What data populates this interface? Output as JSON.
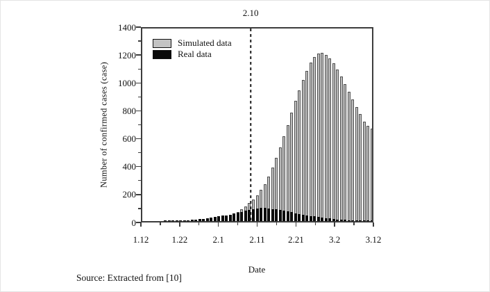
{
  "figure": {
    "dashed_line_label": "2.10",
    "y_axis_title": "Number of confirmed cases (case)",
    "x_axis_title": "Date",
    "source_text": "Source: Extracted from [10]"
  },
  "chart_data": {
    "type": "bar",
    "title": "",
    "xlabel": "Date",
    "ylabel": "Number of confirmed cases (case)",
    "ylim": [
      0,
      1400
    ],
    "grid": false,
    "legend_position": "top-left",
    "y_major_ticks": [
      0,
      200,
      400,
      600,
      800,
      1000,
      1200,
      1400
    ],
    "y_minor_ticks": [
      100,
      300,
      500,
      700,
      900,
      1100,
      1300
    ],
    "x_major_tick_labels": [
      "1.12",
      "1.22",
      "2.1",
      "2.11",
      "2.21",
      "3.2",
      "3.12"
    ],
    "x_major_tick_day_index": [
      0,
      10,
      20,
      30,
      40,
      50,
      60
    ],
    "x_minor_tick_day_index": [
      5,
      15,
      25,
      35,
      45,
      55
    ],
    "annotation": {
      "label": "2.10",
      "style": "dashed-vertical-line",
      "x_fraction": 0.472
    },
    "x": [
      "1.12",
      "1.13",
      "1.14",
      "1.15",
      "1.16",
      "1.17",
      "1.18",
      "1.19",
      "1.20",
      "1.21",
      "1.22",
      "1.23",
      "1.24",
      "1.25",
      "1.26",
      "1.27",
      "1.28",
      "1.29",
      "1.30",
      "1.31",
      "2.1",
      "2.2",
      "2.3",
      "2.4",
      "2.5",
      "2.6",
      "2.7",
      "2.8",
      "2.9",
      "2.10",
      "2.11",
      "2.12",
      "2.13",
      "2.14",
      "2.15",
      "2.16",
      "2.17",
      "2.18",
      "2.19",
      "2.20",
      "2.21",
      "2.22",
      "2.23",
      "2.24",
      "2.25",
      "2.26",
      "2.27",
      "2.28",
      "2.29",
      "3.1",
      "3.2",
      "3.3",
      "3.4",
      "3.5",
      "3.6",
      "3.7",
      "3.8",
      "3.9",
      "3.10",
      "3.11",
      "3.12"
    ],
    "series": [
      {
        "name": "Simulated data",
        "color": "#bdbdbd",
        "border": "#4f4f4f",
        "values": [
          0,
          0,
          0,
          0,
          0,
          0,
          0,
          0,
          0,
          0,
          0,
          0,
          0,
          0,
          0,
          0,
          0,
          0,
          0,
          0,
          0,
          0,
          15,
          30,
          45,
          65,
          85,
          105,
          130,
          155,
          185,
          225,
          270,
          325,
          390,
          460,
          535,
          615,
          700,
          790,
          875,
          950,
          1025,
          1090,
          1150,
          1195,
          1220,
          1225,
          1210,
          1185,
          1145,
          1100,
          1050,
          995,
          940,
          885,
          830,
          780,
          725,
          695,
          670
        ]
      },
      {
        "name": "Real data",
        "color": "#0f0f0f",
        "border": "#000000",
        "values": [
          0,
          0,
          0,
          0,
          0,
          0,
          1,
          1,
          2,
          2,
          3,
          4,
          6,
          8,
          10,
          13,
          16,
          20,
          24,
          28,
          33,
          38,
          43,
          48,
          54,
          60,
          68,
          76,
          83,
          88,
          92,
          95,
          94,
          91,
          88,
          84,
          80,
          75,
          70,
          64,
          58,
          52,
          47,
          42,
          37,
          33,
          29,
          25,
          21,
          18,
          15,
          12,
          10,
          8,
          6,
          5,
          4,
          3,
          2,
          1,
          1
        ]
      }
    ],
    "source": "Source: Extracted from [10]"
  }
}
